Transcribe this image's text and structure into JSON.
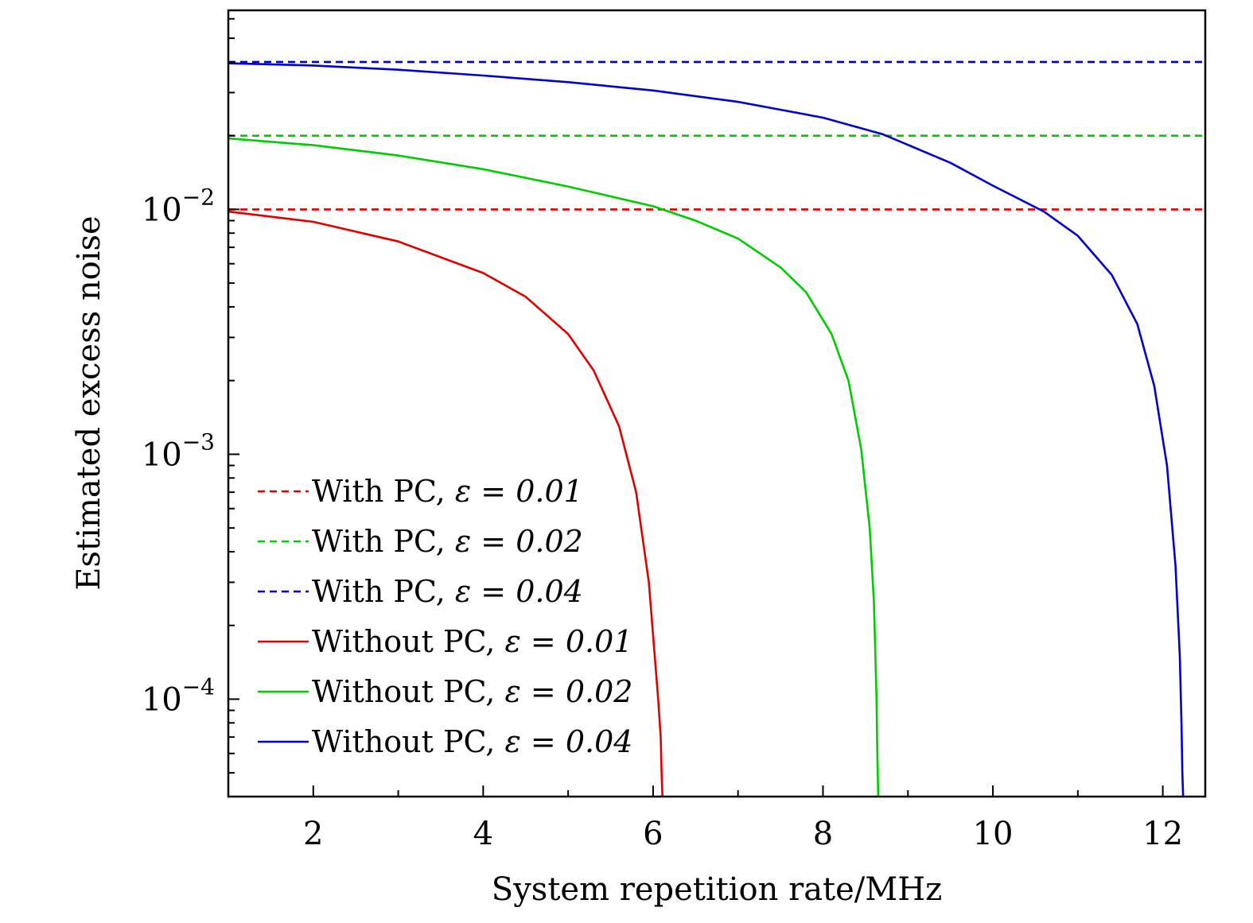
{
  "chart_data": {
    "type": "line",
    "title": "",
    "xlabel": "System repetition rate/MHz",
    "ylabel": "Estimated excess noise",
    "xlim": [
      1,
      12.5
    ],
    "ylim": [
      4e-05,
      0.065
    ],
    "yscale": "log",
    "xticks": [
      2,
      4,
      6,
      8,
      10,
      12
    ],
    "xtick_labels": [
      "2",
      "4",
      "6",
      "8",
      "10",
      "12"
    ],
    "yticks": [
      {
        "value": 0.0001,
        "base": "10",
        "exp": "−4"
      },
      {
        "value": 0.001,
        "base": "10",
        "exp": "−3"
      },
      {
        "value": 0.01,
        "base": "10",
        "exp": "−2"
      }
    ],
    "grid": false,
    "legend_position": "lower-left",
    "series": [
      {
        "name": "With PC, ε = 0.01",
        "label_prefix": "With PC,",
        "label_eq": "ε = 0.01",
        "style": "dashed",
        "color": "#e00000",
        "x": [
          1,
          12.5
        ],
        "y": [
          0.01,
          0.01
        ]
      },
      {
        "name": "With PC, ε = 0.02",
        "label_prefix": "With PC,",
        "label_eq": "ε = 0.02",
        "style": "dashed",
        "color": "#00cc00",
        "x": [
          1,
          12.5
        ],
        "y": [
          0.02,
          0.02
        ]
      },
      {
        "name": "With PC, ε = 0.04",
        "label_prefix": "With PC,",
        "label_eq": "ε = 0.04",
        "style": "dashed",
        "color": "#0000d0",
        "x": [
          1,
          12.5
        ],
        "y": [
          0.04,
          0.04
        ]
      },
      {
        "name": "Without PC, ε = 0.01",
        "label_prefix": "Without PC,",
        "label_eq": "ε = 0.01",
        "style": "solid",
        "color": "#e00000",
        "x": [
          1,
          2,
          3,
          4,
          4.5,
          5,
          5.3,
          5.6,
          5.8,
          5.95,
          6.02,
          6.06,
          6.09,
          6.1,
          6.11,
          6.12
        ],
        "y": [
          0.0098,
          0.0089,
          0.0074,
          0.0055,
          0.0044,
          0.0031,
          0.0022,
          0.0013,
          0.0007,
          0.0003,
          0.00015,
          0.0001,
          7e-05,
          5e-05,
          4e-05,
          4e-05
        ]
      },
      {
        "name": "Without PC, ε = 0.02",
        "label_prefix": "Without PC,",
        "label_eq": "ε = 0.02",
        "style": "solid",
        "color": "#00cc00",
        "x": [
          1,
          2,
          3,
          4,
          5,
          6,
          6.5,
          7,
          7.5,
          7.8,
          8.1,
          8.3,
          8.45,
          8.55,
          8.6,
          8.63,
          8.64,
          8.65
        ],
        "y": [
          0.0195,
          0.0183,
          0.0166,
          0.0146,
          0.0124,
          0.0103,
          0.009,
          0.0076,
          0.0058,
          0.0046,
          0.0031,
          0.002,
          0.00105,
          0.0005,
          0.00025,
          0.0001,
          6e-05,
          4e-05
        ]
      },
      {
        "name": "Without PC, ε = 0.04",
        "label_prefix": "Without PC,",
        "label_eq": "ε = 0.04",
        "style": "solid",
        "color": "#0000d0",
        "x": [
          1,
          2,
          3,
          4,
          5,
          6,
          7,
          8,
          8.7,
          9.5,
          10,
          10.6,
          11,
          11.4,
          11.7,
          11.9,
          12.05,
          12.15,
          12.2,
          12.22,
          12.23,
          12.24
        ],
        "y": [
          0.0395,
          0.0387,
          0.0372,
          0.0352,
          0.0331,
          0.0306,
          0.0275,
          0.0237,
          0.0203,
          0.0155,
          0.0125,
          0.0098,
          0.0078,
          0.0054,
          0.0034,
          0.0019,
          0.0009,
          0.00035,
          0.00015,
          8e-05,
          5e-05,
          4e-05
        ]
      }
    ]
  }
}
